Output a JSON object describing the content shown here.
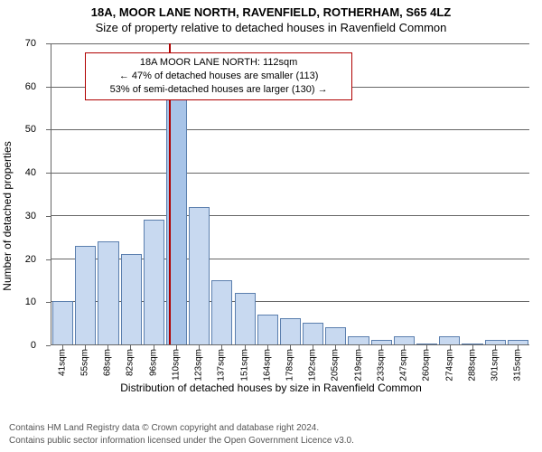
{
  "header": {
    "line1": "18A, MOOR LANE NORTH, RAVENFIELD, ROTHERHAM, S65 4LZ",
    "line2": "Size of property relative to detached houses in Ravenfield Common"
  },
  "info_box": {
    "line1": "18A MOOR LANE NORTH: 112sqm",
    "line2": "← 47% of detached houses are smaller (113)",
    "line3": "53% of semi-detached houses are larger (130) →",
    "border_color": "#b00000",
    "left_pct": 7,
    "top_pct": 3,
    "width_pct": 56
  },
  "chart": {
    "type": "histogram",
    "ylabel": "Number of detached properties",
    "xlabel": "Distribution of detached houses by size in Ravenfield Common",
    "ylim": [
      0,
      70
    ],
    "ytick_step": 10,
    "bar_fill": "#c8d9f0",
    "bar_stroke": "#5b7fae",
    "highlight_fill": "#a8c4e8",
    "grid_color": "#666666",
    "refline_color": "#b00000",
    "refline_category_index": 5,
    "refline_fraction_in_bin": 0.15,
    "categories": [
      "41sqm",
      "55sqm",
      "68sqm",
      "82sqm",
      "96sqm",
      "110sqm",
      "123sqm",
      "137sqm",
      "151sqm",
      "164sqm",
      "178sqm",
      "192sqm",
      "205sqm",
      "219sqm",
      "233sqm",
      "247sqm",
      "260sqm",
      "274sqm",
      "288sqm",
      "301sqm",
      "315sqm"
    ],
    "values": [
      10,
      23,
      24,
      21,
      29,
      62,
      32,
      15,
      12,
      7,
      6,
      5,
      4,
      2,
      1,
      2,
      0,
      2,
      0,
      1,
      1
    ],
    "highlight_index": 5,
    "label_fontsize": 12,
    "tick_fontsize": 11
  },
  "license": {
    "line1": "Contains HM Land Registry data © Crown copyright and database right 2024.",
    "line2": "Contains public sector information licensed under the Open Government Licence v3.0."
  }
}
